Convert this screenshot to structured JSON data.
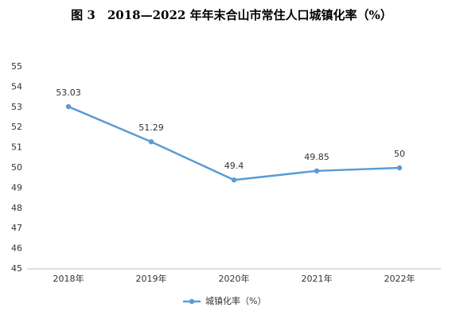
{
  "chart_data": {
    "type": "line",
    "title": "图 3　2018—2022 年年末合山市常住人口城镇化率（%）",
    "categories": [
      "2018年",
      "2019年",
      "2020年",
      "2021年",
      "2022年"
    ],
    "series": [
      {
        "name": "城镇化率（%）",
        "color": "#5b9bd5",
        "values": [
          53.03,
          51.29,
          49.4,
          49.85,
          50
        ]
      }
    ],
    "ylim": [
      45,
      55
    ],
    "yticks": [
      45,
      46,
      47,
      48,
      49,
      50,
      51,
      52,
      53,
      54,
      55
    ],
    "grid": false,
    "legend": "bottom",
    "data_labels": true
  }
}
